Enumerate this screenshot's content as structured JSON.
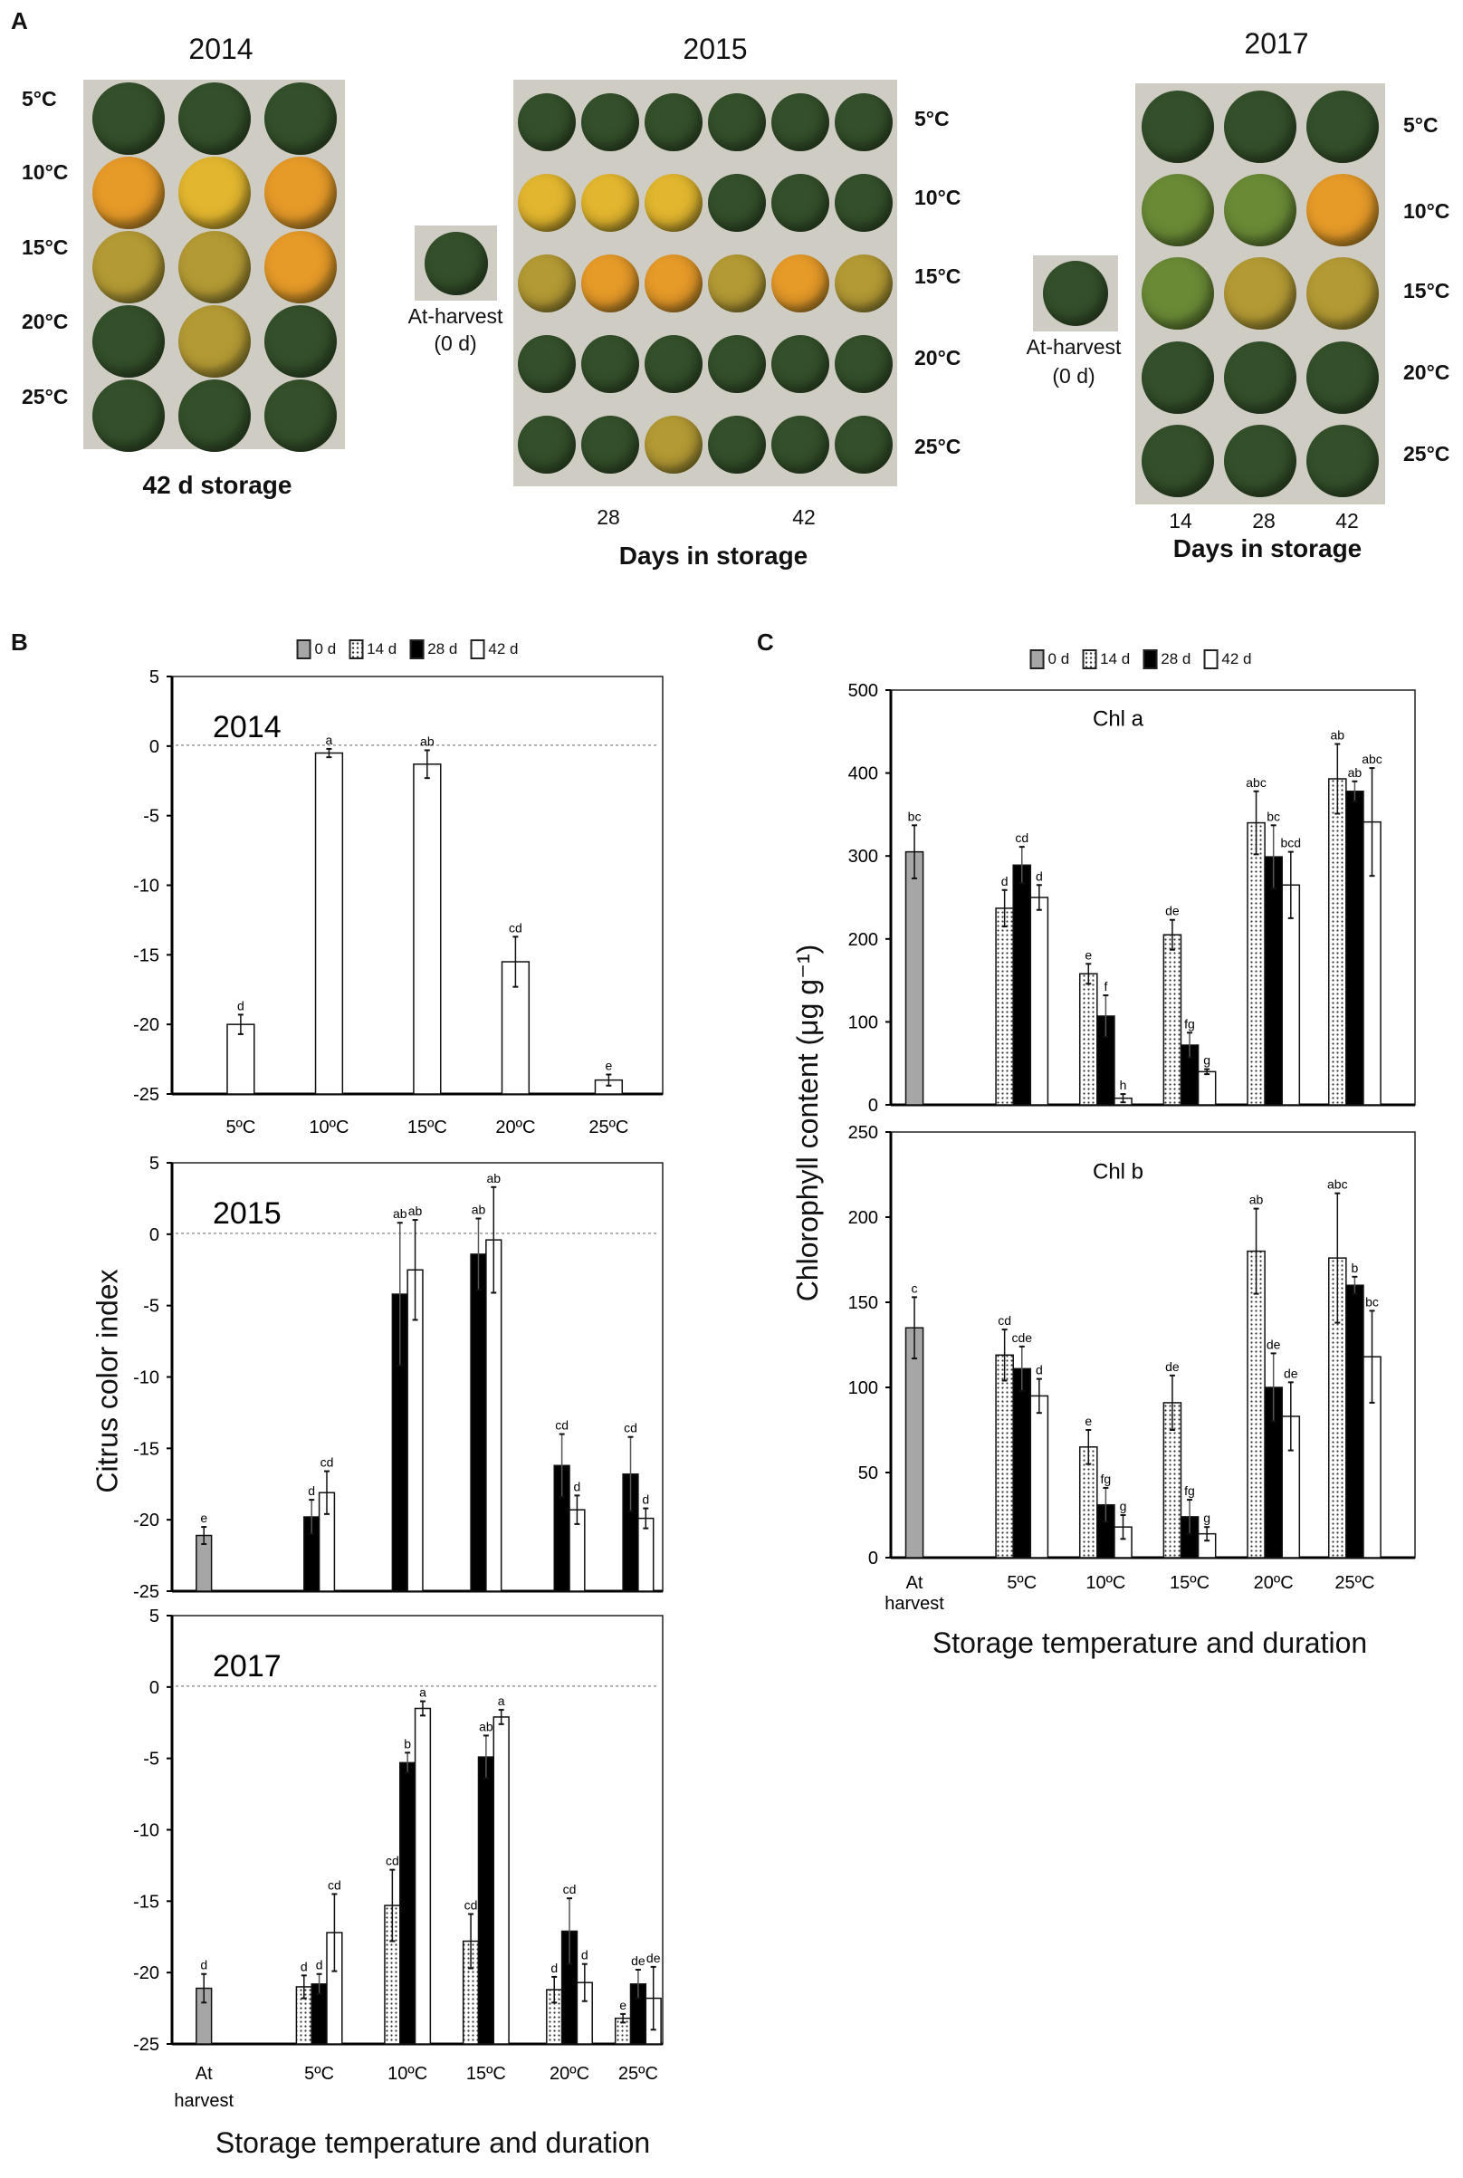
{
  "panel_labels": {
    "a": "A",
    "b": "B",
    "c": "C"
  },
  "photos": {
    "y2014": {
      "title": "2014",
      "temps": [
        "5°C",
        "10°C",
        "15°C",
        "20°C",
        "25°C"
      ],
      "caption": "42 d storage"
    },
    "y2015": {
      "title": "2015",
      "at_harvest": "At-harvest",
      "at_harvest_days": "(0 d)",
      "temps": [
        "5°C",
        "10°C",
        "15°C",
        "20°C",
        "25°C"
      ],
      "days": [
        "28",
        "42"
      ],
      "xlabel": "Days in storage"
    },
    "y2017": {
      "title": "2017",
      "at_harvest": "At-harvest",
      "at_harvest_days": "(0 d)",
      "temps": [
        "5°C",
        "10°C",
        "15°C",
        "20°C",
        "25°C"
      ],
      "days": [
        "14",
        "28",
        "42"
      ],
      "xlabel": "Days in storage"
    }
  },
  "legend": [
    {
      "label": "0 d",
      "fill": "#a6a6a6",
      "pattern": "solid"
    },
    {
      "label": "14 d",
      "fill": "#ffffff",
      "pattern": "dots"
    },
    {
      "label": "28 d",
      "fill": "#000000",
      "pattern": "solid"
    },
    {
      "label": "42 d",
      "fill": "#ffffff",
      "pattern": "solid"
    }
  ],
  "b_ylabel": "Citrus color index",
  "b_xlabel": "Storage temperature and duration",
  "c_ylabel": "Chlorophyll content (μg g⁻¹)",
  "c_xlabel": "Storage temperature and duration",
  "chart_data": [
    {
      "id": "b2014",
      "type": "bar",
      "title": "2014",
      "ylim": [
        -25,
        5
      ],
      "yticks": [
        5,
        0,
        -5,
        -10,
        -15,
        -20,
        -25
      ],
      "reference_line": 0,
      "categories": [
        "5ºC",
        "10ºC",
        "15ºC",
        "20ºC",
        "25ºC"
      ],
      "show_xticks": true,
      "series": [
        {
          "name": "42 d",
          "values": [
            -20.0,
            -0.5,
            -1.3,
            -15.5,
            -24.0
          ],
          "errors": [
            0.7,
            0.3,
            1.0,
            1.8,
            0.4
          ],
          "letters": [
            "d",
            "a",
            "ab",
            "cd",
            "e"
          ]
        }
      ]
    },
    {
      "id": "b2015",
      "type": "bar",
      "title": "2015",
      "ylim": [
        -25,
        5
      ],
      "yticks": [
        5,
        0,
        -5,
        -10,
        -15,
        -20,
        -25
      ],
      "reference_line": 0,
      "categories": [
        "At harvest",
        "5ºC",
        "10ºC",
        "15ºC",
        "20ºC",
        "25ºC"
      ],
      "show_xticks": false,
      "series": [
        {
          "name": "0 d",
          "values": [
            -21.1,
            null,
            null,
            null,
            null,
            null
          ],
          "errors": [
            0.6,
            null,
            null,
            null,
            null,
            null
          ],
          "letters": [
            "e",
            null,
            null,
            null,
            null,
            null
          ]
        },
        {
          "name": "28 d",
          "values": [
            null,
            -19.8,
            -4.2,
            -1.4,
            -16.2,
            -16.8
          ],
          "errors": [
            null,
            1.2,
            5.0,
            2.5,
            2.2,
            2.6
          ],
          "letters": [
            null,
            "d",
            "ab",
            "ab",
            "cd",
            "cd"
          ]
        },
        {
          "name": "42 d",
          "values": [
            null,
            -18.1,
            -2.5,
            -0.4,
            -19.3,
            -19.9
          ],
          "errors": [
            null,
            1.5,
            3.5,
            3.7,
            1.0,
            0.7
          ],
          "letters": [
            null,
            "cd",
            "ab",
            "ab",
            "d",
            "d"
          ]
        }
      ]
    },
    {
      "id": "b2017",
      "type": "bar",
      "title": "2017",
      "ylim": [
        -25,
        5
      ],
      "yticks": [
        5,
        0,
        -5,
        -10,
        -15,
        -20,
        -25
      ],
      "reference_line": 0,
      "categories": [
        "At harvest",
        "5ºC",
        "10ºC",
        "15ºC",
        "20ºC",
        "25ºC"
      ],
      "show_xticks": true,
      "series": [
        {
          "name": "0 d",
          "values": [
            -21.1,
            null,
            null,
            null,
            null,
            null
          ],
          "errors": [
            1.0,
            null,
            null,
            null,
            null,
            null
          ],
          "letters": [
            "d",
            null,
            null,
            null,
            null,
            null
          ]
        },
        {
          "name": "14 d",
          "values": [
            null,
            -21.0,
            -15.3,
            -17.8,
            -21.2,
            -23.2
          ],
          "errors": [
            null,
            0.8,
            2.5,
            1.9,
            0.9,
            0.3
          ],
          "letters": [
            null,
            "d",
            "cd",
            "cd",
            "d",
            "e"
          ]
        },
        {
          "name": "28 d",
          "values": [
            null,
            -20.8,
            -5.3,
            -4.9,
            -17.1,
            -20.8
          ],
          "errors": [
            null,
            0.7,
            0.7,
            1.5,
            2.3,
            1.0
          ],
          "letters": [
            null,
            "d",
            "b",
            "ab",
            "cd",
            "de"
          ]
        },
        {
          "name": "42 d",
          "values": [
            null,
            -17.2,
            -1.5,
            -2.1,
            -20.7,
            -21.8
          ],
          "errors": [
            null,
            2.7,
            0.5,
            0.5,
            1.3,
            2.2
          ],
          "letters": [
            null,
            "cd",
            "a",
            "a",
            "d",
            "de"
          ]
        }
      ]
    },
    {
      "id": "chla",
      "type": "bar",
      "title": "Chl a",
      "ylim": [
        0,
        500
      ],
      "yticks": [
        500,
        400,
        300,
        200,
        100,
        0
      ],
      "categories": [
        "At harvest",
        "5ºC",
        "10ºC",
        "15ºC",
        "20ºC",
        "25ºC"
      ],
      "show_xticks": false,
      "series": [
        {
          "name": "0 d",
          "values": [
            305,
            null,
            null,
            null,
            null,
            null
          ],
          "errors": [
            32,
            null,
            null,
            null,
            null,
            null
          ],
          "letters": [
            "bc",
            null,
            null,
            null,
            null,
            null
          ]
        },
        {
          "name": "14 d",
          "values": [
            null,
            237,
            158,
            205,
            340,
            393
          ],
          "errors": [
            null,
            22,
            12,
            18,
            38,
            42
          ],
          "letters": [
            null,
            "d",
            "e",
            "de",
            "abc",
            "ab"
          ]
        },
        {
          "name": "28 d",
          "values": [
            null,
            289,
            107,
            72,
            299,
            378
          ],
          "errors": [
            null,
            22,
            25,
            15,
            38,
            12
          ],
          "letters": [
            null,
            "cd",
            "f",
            "fg",
            "bc",
            "ab"
          ]
        },
        {
          "name": "42 d",
          "values": [
            null,
            250,
            8,
            40,
            265,
            341
          ],
          "errors": [
            null,
            15,
            5,
            3,
            40,
            65
          ],
          "letters": [
            null,
            "d",
            "h",
            "g",
            "bcd",
            "abc"
          ]
        }
      ]
    },
    {
      "id": "chlb",
      "type": "bar",
      "title": "Chl b",
      "ylim": [
        0,
        250
      ],
      "yticks": [
        250,
        200,
        150,
        100,
        50,
        0
      ],
      "categories": [
        "At harvest",
        "5ºC",
        "10ºC",
        "15ºC",
        "20ºC",
        "25ºC"
      ],
      "show_xticks": true,
      "series": [
        {
          "name": "0 d",
          "values": [
            135,
            null,
            null,
            null,
            null,
            null
          ],
          "errors": [
            18,
            null,
            null,
            null,
            null,
            null
          ],
          "letters": [
            "c",
            null,
            null,
            null,
            null,
            null
          ]
        },
        {
          "name": "14 d",
          "values": [
            null,
            119,
            65,
            91,
            180,
            176
          ],
          "errors": [
            null,
            15,
            10,
            16,
            25,
            38
          ],
          "letters": [
            null,
            "cd",
            "e",
            "de",
            "ab",
            "abc"
          ]
        },
        {
          "name": "28 d",
          "values": [
            null,
            111,
            31,
            24,
            100,
            160
          ],
          "errors": [
            null,
            13,
            10,
            10,
            20,
            5
          ],
          "letters": [
            null,
            "cde",
            "fg",
            "fg",
            "de",
            "b"
          ]
        },
        {
          "name": "42 d",
          "values": [
            null,
            95,
            18,
            14,
            83,
            118
          ],
          "errors": [
            null,
            10,
            7,
            4,
            20,
            27
          ],
          "letters": [
            null,
            "d",
            "g",
            "g",
            "de",
            "bc"
          ]
        }
      ]
    }
  ]
}
